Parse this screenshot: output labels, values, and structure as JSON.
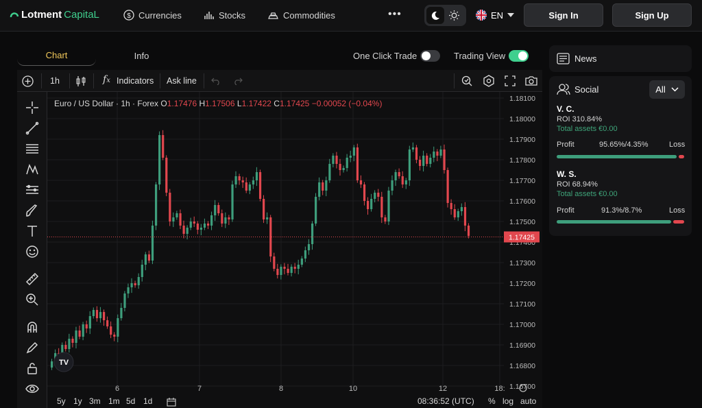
{
  "header": {
    "logo_text": "Lotment",
    "logo_accent": "CapitaL",
    "nav": [
      {
        "label": "Currencies",
        "icon": "dollar-coin-icon"
      },
      {
        "label": "Stocks",
        "icon": "bar-chart-icon"
      },
      {
        "label": "Commodities",
        "icon": "gold-bars-icon"
      }
    ],
    "more_icon": "ellipsis-icon",
    "language": "EN",
    "sign_in": "Sign In",
    "sign_up": "Sign Up"
  },
  "tabs": [
    "Chart",
    "Info"
  ],
  "toggles": {
    "one_click_trade": "One Click Trade",
    "one_click_on": false,
    "trading_view": "Trading View",
    "trading_view_on": true
  },
  "chart_toolbar": {
    "interval": "1h",
    "indicators": "Indicators",
    "ask_line": "Ask line"
  },
  "legend": {
    "symbol": "Euro / US Dollar · 1h · Forex",
    "o_label": "O",
    "o": "1.17476",
    "h_label": "H",
    "h": "1.17506",
    "l_label": "L",
    "l": "1.17422",
    "c_label": "C",
    "c": "1.17425",
    "change": "−0.00052 (−0.04%)"
  },
  "bottom_bar": {
    "ranges": [
      "5y",
      "1y",
      "3m",
      "1m",
      "5d",
      "1d"
    ],
    "time": "08:36:52 (UTC)",
    "percent": "%",
    "log": "log",
    "auto": "auto"
  },
  "chart_data": {
    "type": "candlestick",
    "title": "Euro / US Dollar · 1h · Forex",
    "ylim": [
      1.1665,
      1.1813
    ],
    "y_ticks": [
      "1.18100",
      "1.18000",
      "1.17900",
      "1.17800",
      "1.17700",
      "1.17600",
      "1.17500",
      "1.17400",
      "1.17300",
      "1.17200",
      "1.17100",
      "1.17000",
      "1.16900",
      "1.16800",
      "1.16700"
    ],
    "x_ticks": [
      "6",
      "7",
      "8",
      "10",
      "12",
      "18:"
    ],
    "last_price": "1.17425",
    "colors": {
      "up": "#3e9e7c",
      "down": "#e2474e"
    },
    "closes": [
      1.1682,
      1.1686,
      1.1684,
      1.169,
      1.1688,
      1.1693,
      1.1691,
      1.1697,
      1.1694,
      1.17,
      1.1698,
      1.1704,
      1.1707,
      1.1703,
      1.1706,
      1.1702,
      1.1699,
      1.1695,
      1.1694,
      1.1703,
      1.1708,
      1.1715,
      1.1718,
      1.172,
      1.1719,
      1.1723,
      1.1729,
      1.1734,
      1.1731,
      1.1748,
      1.1768,
      1.1792,
      1.1781,
      1.1764,
      1.175,
      1.1752,
      1.1754,
      1.1748,
      1.1744,
      1.1747,
      1.175,
      1.1749,
      1.1746,
      1.1747,
      1.1749,
      1.1748,
      1.1753,
      1.1758,
      1.1754,
      1.1749,
      1.1752,
      1.1751,
      1.1768,
      1.1772,
      1.177,
      1.1769,
      1.1765,
      1.1768,
      1.177,
      1.1774,
      1.1761,
      1.1751,
      1.1752,
      1.1733,
      1.1727,
      1.1724,
      1.1728,
      1.1727,
      1.1725,
      1.1728,
      1.1727,
      1.1729,
      1.1732,
      1.1736,
      1.1739,
      1.1749,
      1.1762,
      1.1769,
      1.1765,
      1.177,
      1.1778,
      1.1782,
      1.1778,
      1.1775,
      1.1776,
      1.1781,
      1.1782,
      1.1786,
      1.177,
      1.1768,
      1.176,
      1.1756,
      1.1761,
      1.1764,
      1.1762,
      1.1752,
      1.175,
      1.1765,
      1.177,
      1.1774,
      1.1772,
      1.1768,
      1.177,
      1.1785,
      1.1786,
      1.178,
      1.1777,
      1.1782,
      1.1778,
      1.1781,
      1.1784,
      1.1782,
      1.1785,
      1.1775,
      1.1759,
      1.1756,
      1.1752,
      1.1755,
      1.1757,
      1.1748,
      1.1743
    ]
  },
  "news": {
    "title": "News",
    "icon": "news-icon"
  },
  "social": {
    "title": "Social",
    "filter": "All",
    "traders": [
      {
        "name": "V. C.",
        "roi": "ROI 310.84%",
        "assets": "Total assets €0.00",
        "profit_label": "Profit",
        "ratio": "95.65%/4.35%",
        "loss_label": "Loss",
        "profit_pct": 95.65
      },
      {
        "name": "W. S.",
        "roi": "ROI 68.94%",
        "assets": "Total assets €0.00",
        "profit_label": "Profit",
        "ratio": "91.3%/8.7%",
        "loss_label": "Loss",
        "profit_pct": 91.3
      }
    ]
  }
}
